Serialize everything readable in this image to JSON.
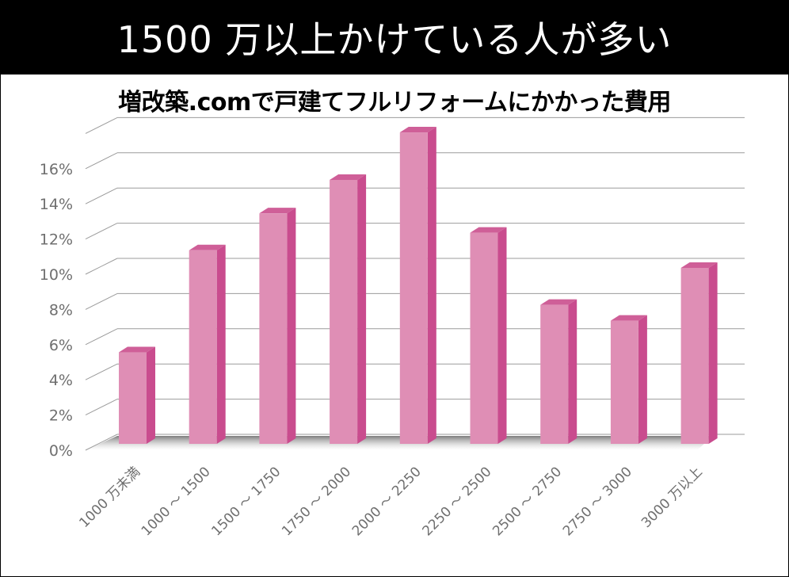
{
  "header": {
    "title": "1500 万以上かけている人が多い"
  },
  "chart_data": {
    "type": "bar",
    "title": "増改築.comで戸建てフルリフォームにかかった費用",
    "categories": [
      "1000 万未満",
      "1000 ～ 1500",
      "1500 ～ 1750",
      "1750 ～ 2000",
      "2000 ～ 2250",
      "2250 ～ 2500",
      "2500 ～ 2750",
      "2750 ～ 3000",
      "3000 万以上"
    ],
    "values": [
      5.2,
      11.0,
      13.1,
      15.0,
      17.7,
      12.0,
      7.9,
      7.0,
      10.0
    ],
    "yticks": [
      "0%",
      "2%",
      "4%",
      "6%",
      "8%",
      "10%",
      "12%",
      "14%",
      "16%"
    ],
    "ylim": [
      0,
      18
    ],
    "grid": true,
    "legend": "none",
    "colors": {
      "bar_front": "#df8eb5",
      "bar_side": "#c94c8e",
      "bar_top": "#cf5f98",
      "grid": "#9b9b9b"
    }
  }
}
